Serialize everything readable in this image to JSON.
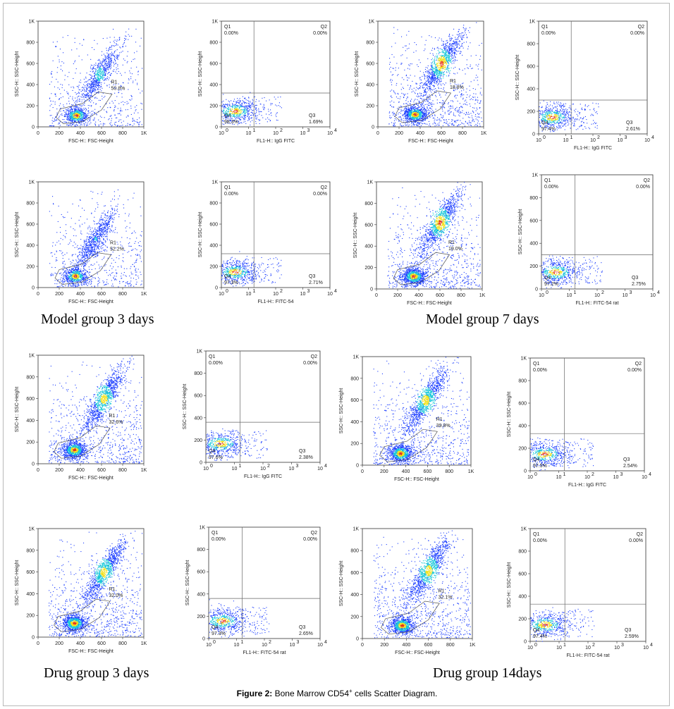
{
  "caption": {
    "label": "Figure 2:",
    "text_before": "Bone Marrow CD54",
    "superscript": "+",
    "text_after": " cells Scatter Diagram."
  },
  "group_labels": [
    "Model group 3 days",
    "Model group 7 days",
    "Drug group 3 days",
    "Drug group 14days"
  ],
  "colors": {
    "density_low": "#1a3cff",
    "density_mid": "#16c8d8",
    "density_high": "#f2e11a",
    "density_peak": "#e8341c",
    "gate_line": "#555555",
    "quad_line": "#666666"
  },
  "chart_data": [
    {
      "id": "m3-fsc-1",
      "type": "scatter",
      "kind": "fsc_ssc",
      "xlabel": "FSC-H:: FSC-Height",
      "ylabel": "SSC-H:: SSC-Height",
      "xticks": [
        "0",
        "200",
        "400",
        "600",
        "800",
        "1K"
      ],
      "yticks": [
        "0",
        "200",
        "400",
        "600",
        "800",
        "1K"
      ],
      "xlim": [
        0,
        1000
      ],
      "ylim": [
        0,
        1000
      ],
      "gate": "R1",
      "gate_pct": "50.8%",
      "clusters": [
        {
          "x": 360,
          "y": 110,
          "w": 1.0
        },
        {
          "x": 580,
          "y": 500,
          "w": 0.85
        }
      ],
      "density": "medium"
    },
    {
      "id": "m3-fl1-1",
      "type": "scatter",
      "kind": "quadrant",
      "xlabel": "FL1-H:: IgG FITC",
      "ylabel": "SSC-H:: SSC-Height",
      "xticks": [
        "10",
        "10",
        "10",
        "10",
        "10"
      ],
      "xexp": [
        "0",
        "1",
        "2",
        "3",
        "4"
      ],
      "yticks": [
        "0",
        "200",
        "400",
        "600",
        "800",
        "1K"
      ],
      "quadrants": {
        "Q1": "0.00%",
        "Q2": "0.00%",
        "Q3": "1.69%",
        "Q4": "98.3%"
      },
      "x_div_log": 1.2,
      "y_div": 320,
      "clusters": [
        {
          "lx": 0.5,
          "y": 150
        }
      ]
    },
    {
      "id": "m7-fsc-1",
      "type": "scatter",
      "kind": "fsc_ssc",
      "xlabel": "FSC-H:: FSC-Height",
      "ylabel": "SSC-H:: SSC-Height",
      "xticks": [
        "0",
        "200",
        "400",
        "600",
        "800",
        "1K"
      ],
      "yticks": [
        "0",
        "200",
        "400",
        "600",
        "800",
        "1K"
      ],
      "xlim": [
        0,
        1000
      ],
      "ylim": [
        0,
        1000
      ],
      "gate": "R1",
      "gate_pct": "18.8%",
      "clusters": [
        {
          "x": 350,
          "y": 120,
          "w": 1.0
        },
        {
          "x": 600,
          "y": 600,
          "w": 1.0
        }
      ],
      "density": "high"
    },
    {
      "id": "m7-fl1-1",
      "type": "scatter",
      "kind": "quadrant",
      "xlabel": "FL1-H:: IgG FITC",
      "ylabel": "SSC-H:: SSC-Height",
      "xticks": [
        "10",
        "10",
        "10",
        "10",
        "10"
      ],
      "xexp": [
        "0",
        "1",
        "2",
        "3",
        "4"
      ],
      "yticks": [
        "0",
        "200",
        "400",
        "600",
        "800",
        "1K"
      ],
      "quadrants": {
        "Q1": "0.00%",
        "Q2": "0.00%",
        "Q3": "2.61%",
        "Q4": "97.4%"
      },
      "x_div_log": 1.2,
      "y_div": 300,
      "clusters": [
        {
          "lx": 0.5,
          "y": 150
        }
      ]
    },
    {
      "id": "m3-fsc-2",
      "type": "scatter",
      "kind": "fsc_ssc",
      "xlabel": "FSC-H:: FSC-Height",
      "ylabel": "SSC-H:: SSC-Height",
      "xticks": [
        "0",
        "200",
        "400",
        "600",
        "800",
        "1K"
      ],
      "yticks": [
        "0",
        "200",
        "400",
        "600",
        "800",
        "1K"
      ],
      "xlim": [
        0,
        1000
      ],
      "ylim": [
        0,
        1000
      ],
      "gate": "R1",
      "gate_pct": "52.2%",
      "clusters": [
        {
          "x": 350,
          "y": 110,
          "w": 1.0
        },
        {
          "x": 540,
          "y": 460,
          "w": 0.7
        }
      ],
      "density": "medium"
    },
    {
      "id": "m3-fl1-2",
      "type": "scatter",
      "kind": "quadrant",
      "xlabel": "FL1-H:: FITC-54",
      "ylabel": "SSC-H:: SSC-Height",
      "xticks": [
        "10",
        "10",
        "10",
        "10",
        "10"
      ],
      "xexp": [
        "0",
        "1",
        "2",
        "3",
        "4"
      ],
      "yticks": [
        "0",
        "200",
        "400",
        "600",
        "800",
        "1K"
      ],
      "quadrants": {
        "Q1": "0.00%",
        "Q2": "0.00%",
        "Q3": "2.71%",
        "Q4": "97.3%"
      },
      "x_div_log": 1.2,
      "y_div": 320,
      "clusters": [
        {
          "lx": 0.5,
          "y": 150
        }
      ]
    },
    {
      "id": "m7-fsc-2",
      "type": "scatter",
      "kind": "fsc_ssc",
      "xlabel": "FSC-H:: FSC-Height",
      "ylabel": "SSC-H:: SSC-Height",
      "xticks": [
        "0",
        "200",
        "400",
        "600",
        "800",
        "1K"
      ],
      "yticks": [
        "0",
        "200",
        "400",
        "600",
        "800",
        "1K"
      ],
      "xlim": [
        0,
        1000
      ],
      "ylim": [
        0,
        1000
      ],
      "gate": "R1",
      "gate_pct": "19.0%",
      "clusters": [
        {
          "x": 350,
          "y": 120,
          "w": 1.0
        },
        {
          "x": 600,
          "y": 620,
          "w": 1.0
        }
      ],
      "density": "high"
    },
    {
      "id": "m7-fl1-2",
      "type": "scatter",
      "kind": "quadrant",
      "xlabel": "FL1-H:: FITC-54 rat",
      "ylabel": "SSC-H:: SSC-Height",
      "xticks": [
        "10",
        "10",
        "10",
        "10",
        "10"
      ],
      "xexp": [
        "0",
        "1",
        "2",
        "3",
        "4"
      ],
      "yticks": [
        "0",
        "200",
        "400",
        "600",
        "800",
        "1K"
      ],
      "quadrants": {
        "Q1": "0.00%",
        "Q2": "0.00%",
        "Q3": "2.75%",
        "Q4": "97.2%"
      },
      "x_div_log": 1.2,
      "y_div": 300,
      "clusters": [
        {
          "lx": 0.5,
          "y": 150
        }
      ]
    },
    {
      "id": "d3-fsc-1",
      "type": "scatter",
      "kind": "fsc_ssc",
      "xlabel": "FSC-H:: FSC-Height",
      "ylabel": "SSC-H:: SSC-Height",
      "xticks": [
        "0",
        "200",
        "400",
        "600",
        "800",
        "1K"
      ],
      "yticks": [
        "0",
        "200",
        "400",
        "600",
        "800",
        "1K"
      ],
      "xlim": [
        0,
        1000
      ],
      "ylim": [
        0,
        1000
      ],
      "gate": "R1",
      "gate_pct": "32.6%",
      "clusters": [
        {
          "x": 340,
          "y": 130,
          "w": 1.0
        },
        {
          "x": 620,
          "y": 600,
          "w": 0.9
        }
      ],
      "density": "high"
    },
    {
      "id": "d3-fl1-1",
      "type": "scatter",
      "kind": "quadrant",
      "xlabel": "FL1-H:: IgG FITC",
      "ylabel": "SSC-H:: SSC-Height",
      "xticks": [
        "10",
        "10",
        "10",
        "10",
        "10"
      ],
      "xexp": [
        "0",
        "1",
        "2",
        "3",
        "4"
      ],
      "yticks": [
        "0",
        "200",
        "400",
        "600",
        "800",
        "1K"
      ],
      "quadrants": {
        "Q1": "0.00%",
        "Q2": "0.00%",
        "Q3": "2.38%",
        "Q4": "97.6%"
      },
      "x_div_log": 1.2,
      "y_div": 360,
      "clusters": [
        {
          "lx": 0.5,
          "y": 170
        }
      ]
    },
    {
      "id": "d14-fsc-1",
      "type": "scatter",
      "kind": "fsc_ssc",
      "xlabel": "FSC-H:: FSC-Height",
      "ylabel": "SSC-H:: SSC-Height",
      "xticks": [
        "0",
        "200",
        "400",
        "600",
        "800",
        "1K"
      ],
      "yticks": [
        "0",
        "200",
        "400",
        "600",
        "800",
        "1K"
      ],
      "xlim": [
        0,
        1000
      ],
      "ylim": [
        0,
        1000
      ],
      "gate": "R1",
      "gate_pct": "39.8%",
      "clusters": [
        {
          "x": 350,
          "y": 110,
          "w": 1.0
        },
        {
          "x": 580,
          "y": 600,
          "w": 0.9
        }
      ],
      "density": "high"
    },
    {
      "id": "d14-fl1-1",
      "type": "scatter",
      "kind": "quadrant",
      "xlabel": "FL1-H:: IgG FITC",
      "ylabel": "SSC-H:: SSC-Height",
      "xticks": [
        "10",
        "10",
        "10",
        "10",
        "10"
      ],
      "xexp": [
        "0",
        "1",
        "2",
        "3",
        "4"
      ],
      "yticks": [
        "0",
        "200",
        "400",
        "600",
        "800",
        "1K"
      ],
      "quadrants": {
        "Q1": "0.00%",
        "Q2": "0.00%",
        "Q3": "2.54%",
        "Q4": "97.5%"
      },
      "x_div_log": 1.2,
      "y_div": 330,
      "clusters": [
        {
          "lx": 0.5,
          "y": 150
        }
      ]
    },
    {
      "id": "d3-fsc-2",
      "type": "scatter",
      "kind": "fsc_ssc",
      "xlabel": "FSC-H:: FSC-Height",
      "ylabel": "SSC-H:: SSC-Height",
      "xticks": [
        "0",
        "200",
        "400",
        "600",
        "800",
        "1K"
      ],
      "yticks": [
        "0",
        "200",
        "400",
        "600",
        "800",
        "1K"
      ],
      "xlim": [
        0,
        1000
      ],
      "ylim": [
        0,
        1000
      ],
      "gate": "R1",
      "gate_pct": "32.0%",
      "clusters": [
        {
          "x": 340,
          "y": 130,
          "w": 1.0
        },
        {
          "x": 620,
          "y": 600,
          "w": 0.9
        }
      ],
      "density": "high"
    },
    {
      "id": "d3-fl1-2",
      "type": "scatter",
      "kind": "quadrant",
      "xlabel": "FL1-H:: FITC-54 rat",
      "ylabel": "SSC-H:: SSC-Height",
      "xticks": [
        "10",
        "10",
        "10",
        "10",
        "10"
      ],
      "xexp": [
        "0",
        "1",
        "2",
        "3",
        "4"
      ],
      "yticks": [
        "0",
        "200",
        "400",
        "600",
        "800",
        "1K"
      ],
      "quadrants": {
        "Q1": "0.00%",
        "Q2": "0.00%",
        "Q3": "2.65%",
        "Q4": "97.3%"
      },
      "x_div_log": 1.2,
      "y_div": 360,
      "clusters": [
        {
          "lx": 0.5,
          "y": 160
        }
      ]
    },
    {
      "id": "d14-fsc-2",
      "type": "scatter",
      "kind": "fsc_ssc",
      "xlabel": "FSC-H:: FSC-Height",
      "ylabel": "SSC-H:: SSC-Height",
      "xticks": [
        "0",
        "200",
        "400",
        "600",
        "800",
        "1K"
      ],
      "yticks": [
        "0",
        "200",
        "400",
        "600",
        "800",
        "1K"
      ],
      "xlim": [
        0,
        1000
      ],
      "ylim": [
        0,
        1000
      ],
      "gate": "R1",
      "gate_pct": "32.1%",
      "clusters": [
        {
          "x": 360,
          "y": 120,
          "w": 1.0
        },
        {
          "x": 600,
          "y": 620,
          "w": 0.9
        }
      ],
      "density": "high"
    },
    {
      "id": "d14-fl1-2",
      "type": "scatter",
      "kind": "quadrant",
      "xlabel": "FL1-H:: FITC-54 rat",
      "ylabel": "SSC-H:: SSC-Height",
      "xticks": [
        "10",
        "10",
        "10",
        "10",
        "10"
      ],
      "xexp": [
        "0",
        "1",
        "2",
        "3",
        "4"
      ],
      "yticks": [
        "0",
        "200",
        "400",
        "600",
        "800",
        "1K"
      ],
      "quadrants": {
        "Q1": "0.00%",
        "Q2": "0.00%",
        "Q3": "2.59%",
        "Q4": "97.4%"
      },
      "x_div_log": 1.2,
      "y_div": 330,
      "clusters": [
        {
          "lx": 0.5,
          "y": 150
        }
      ]
    }
  ]
}
